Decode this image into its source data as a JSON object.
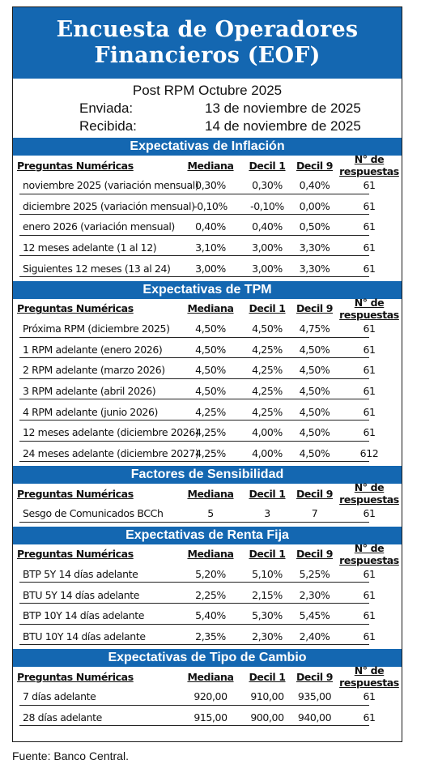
{
  "title": {
    "line1": "Encuesta de Operadores",
    "line2": "Financieros (EOF)"
  },
  "subtitle": "Post RPM Octubre 2025",
  "sent": {
    "label": "Enviada:",
    "value": "13 de noviembre de 2025"
  },
  "received": {
    "label": "Recibida:",
    "value": "14 de noviembre de 2025"
  },
  "sections": [
    {
      "title": "Expectativas de Inflación",
      "headers": [
        "Preguntas Numéricas",
        "Mediana",
        "Decil 1",
        "Decil 9",
        "N° de respuestas"
      ],
      "rows": [
        [
          "noviembre 2025 (variación mensual)",
          "0,30%",
          "0,30%",
          "0,40%",
          "61"
        ],
        [
          "diciembre 2025 (variación mensual)",
          "-0,10%",
          "-0,10%",
          "0,00%",
          "61"
        ],
        [
          "enero 2026 (variación mensual)",
          "0,40%",
          "0,40%",
          "0,50%",
          "61"
        ],
        [
          "12 meses adelante (1 al 12)",
          "3,10%",
          "3,00%",
          "3,30%",
          "61"
        ],
        [
          "Siguientes 12 meses (13 al 24)",
          "3,00%",
          "3,00%",
          "3,30%",
          "61"
        ]
      ]
    },
    {
      "title": "Expectativas de TPM",
      "headers": [
        "Preguntas Numéricas",
        "Mediana",
        "Decil 1",
        "Decil 9",
        "N° de respuestas"
      ],
      "rows": [
        [
          "Próxima RPM (diciembre 2025)",
          "4,50%",
          "4,50%",
          "4,75%",
          "61"
        ],
        [
          "1 RPM adelante (enero 2026)",
          "4,50%",
          "4,25%",
          "4,50%",
          "61"
        ],
        [
          "2 RPM adelante (marzo 2026)",
          "4,50%",
          "4,25%",
          "4,50%",
          "61"
        ],
        [
          "3 RPM adelante (abril 2026)",
          "4,50%",
          "4,25%",
          "4,50%",
          "61"
        ],
        [
          "4 RPM adelante (junio 2026)",
          "4,25%",
          "4,25%",
          "4,50%",
          "61"
        ],
        [
          "12 meses adelante (diciembre 2026)",
          "4,25%",
          "4,00%",
          "4,50%",
          "61"
        ],
        [
          "24 meses adelante (diciembre 2027)",
          "4,25%",
          "4,00%",
          "4,50%",
          "612"
        ]
      ]
    },
    {
      "title": "Factores de Sensibilidad",
      "headers": [
        "Preguntas Numéricas",
        "Mediana",
        "Decil 1",
        "Decil 9",
        "N° de respuestas"
      ],
      "rows": [
        [
          "Sesgo de Comunicados BCCh",
          "5",
          "3",
          "7",
          "61"
        ]
      ]
    },
    {
      "title": "Expectativas  de Renta Fija",
      "headers": [
        "Preguntas Numéricas",
        "Mediana",
        "Decil 1",
        "Decil 9",
        "N° de respuestas"
      ],
      "rows": [
        [
          "BTP 5Y 14 días adelante",
          "5,20%",
          "5,10%",
          "5,25%",
          "61"
        ],
        [
          "BTU 5Y 14 días adelante",
          "2,25%",
          "2,15%",
          "2,30%",
          "61"
        ],
        [
          "BTP 10Y 14 días adelante",
          "5,40%",
          "5,30%",
          "5,45%",
          "61"
        ],
        [
          "BTU 10Y 14 días adelante",
          "2,35%",
          "2,30%",
          "2,40%",
          "61"
        ]
      ]
    },
    {
      "title": "Expectativas  de Tipo de Cambio",
      "headers": [
        "Preguntas Numéricas",
        "Mediana",
        "Decil 1",
        "Decil 9",
        "N° de respuestas"
      ],
      "rows": [
        [
          "7 días adelante",
          "920,00",
          "910,00",
          "935,00",
          "61"
        ],
        [
          "28 días adelante",
          "915,00",
          "900,00",
          "940,00",
          "61"
        ]
      ]
    }
  ],
  "footer": "Fuente: Banco Central.",
  "colors": {
    "header_blue": "#1467b1"
  }
}
